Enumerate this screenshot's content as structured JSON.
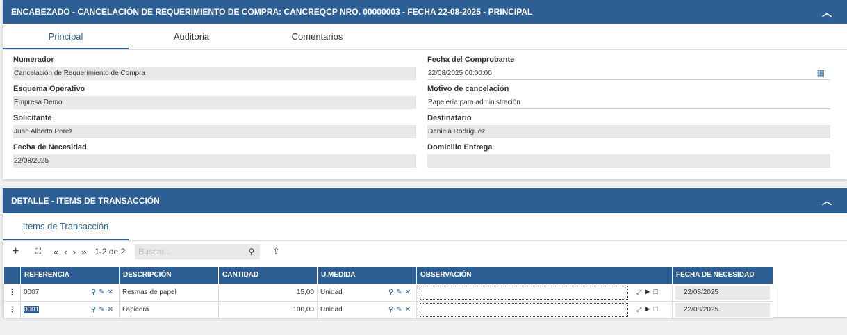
{
  "header": {
    "title": "ENCABEZADO - CANCELACIÓN DE REQUERIMIENTO DE COMPRA: CANCREQCP NRO. 00000003 - FECHA 22-08-2025 - PRINCIPAL",
    "tabs": [
      "Principal",
      "Auditoria",
      "Comentarios"
    ],
    "fields": {
      "numerador": {
        "label": "Numerador",
        "value": "Cancelación de Requerimiento de Compra"
      },
      "esquema": {
        "label": "Esquema Operativo",
        "value": "Empresa Demo"
      },
      "solicitante": {
        "label": "Solicitante",
        "value": "Juan Alberto Perez"
      },
      "fecha_necesidad": {
        "label": "Fecha de Necesidad",
        "value": "22/08/2025"
      },
      "fecha_comprobante": {
        "label": "Fecha del Comprobante",
        "value": "22/08/2025 00:00:00"
      },
      "motivo": {
        "label": "Motivo de cancelación",
        "value": "Papelería para administración"
      },
      "destinatario": {
        "label": "Destinatario",
        "value": "Daniela Rodriguez"
      },
      "domicilio": {
        "label": "Domicilio Entrega",
        "value": ""
      }
    }
  },
  "detail": {
    "title": "DETALLE - ITEMS DE TRANSACCIÓN",
    "tab": "Items de Transacción",
    "toolbar": {
      "add": "+",
      "expand": "⛶",
      "first": "«",
      "prev": "‹",
      "next": "›",
      "last": "»",
      "pager": "1-2 de 2",
      "search_placeholder": "Buscar...",
      "export": "⇪"
    },
    "columns": [
      "REFERENCIA",
      "DESCRIPCIÓN",
      "CANTIDAD",
      "U.MEDIDA",
      "OBSERVACIÓN",
      "FECHA DE NECESIDAD"
    ],
    "rows": [
      {
        "ref": "0007",
        "desc": "Resmas de papel",
        "cant": "15,00",
        "um": "Unidad",
        "obs": "",
        "fecha": "22/08/2025"
      },
      {
        "ref": "0001",
        "desc": "Lapicera",
        "cant": "100,00",
        "um": "Unidad",
        "obs": "",
        "fecha": "22/08/2025"
      }
    ]
  },
  "colors": {
    "primary": "#2e5f94"
  }
}
